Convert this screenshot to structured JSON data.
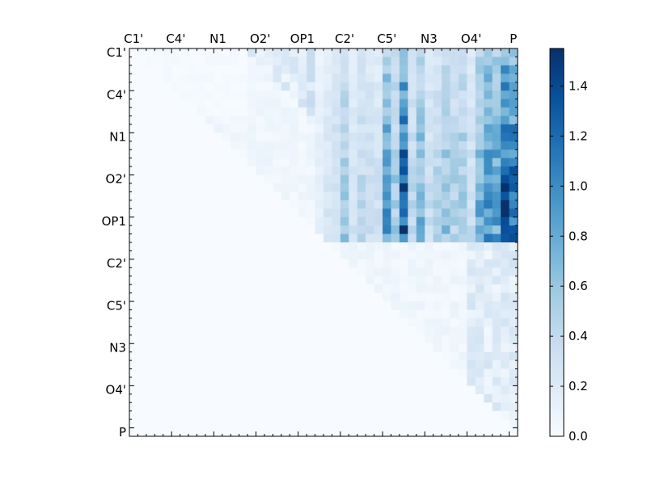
{
  "chart_data": {
    "type": "heatmap",
    "title": "",
    "xlabel": "",
    "ylabel": "",
    "x_labels": [
      "C1'",
      "C4'",
      "N1",
      "O2'",
      "OP1",
      "C2'",
      "C5'",
      "N3",
      "O4'",
      "P"
    ],
    "y_labels": [
      "C1'",
      "C4'",
      "N1",
      "O2'",
      "OP1",
      "C2'",
      "C5'",
      "N3",
      "O4'",
      "P"
    ],
    "label_positions_in_cells": [
      0,
      5,
      10,
      15,
      20,
      25,
      30,
      35,
      40,
      45
    ],
    "n_rows": 46,
    "n_cols": 46,
    "colorbar": {
      "min": 0.0,
      "max": 1.55,
      "ticks": [
        0.0,
        0.2,
        0.4,
        0.6,
        0.8,
        1.0,
        1.2,
        1.4
      ],
      "tick_labels": [
        "0.0",
        "0.2",
        "0.4",
        "0.6",
        "0.8",
        "1.0",
        "1.2",
        "1.4"
      ],
      "colormap": "Blues",
      "color_stops": [
        "#f7fbff",
        "#deebf7",
        "#c6dbef",
        "#9ecae1",
        "#6baed6",
        "#4292c6",
        "#2171b5",
        "#08519c",
        "#08306b"
      ]
    },
    "structure": {
      "upper_triangle_only": true,
      "strong_block": "rows 0-22 (C1' through OP1) x columns 22-45 (OP1 through P)",
      "brightest_columns": [
        "C5'",
        "O4'",
        "P"
      ],
      "approx_max_value": 1.55,
      "lower_block_values": "mostly below 0.25"
    },
    "grid": false
  }
}
